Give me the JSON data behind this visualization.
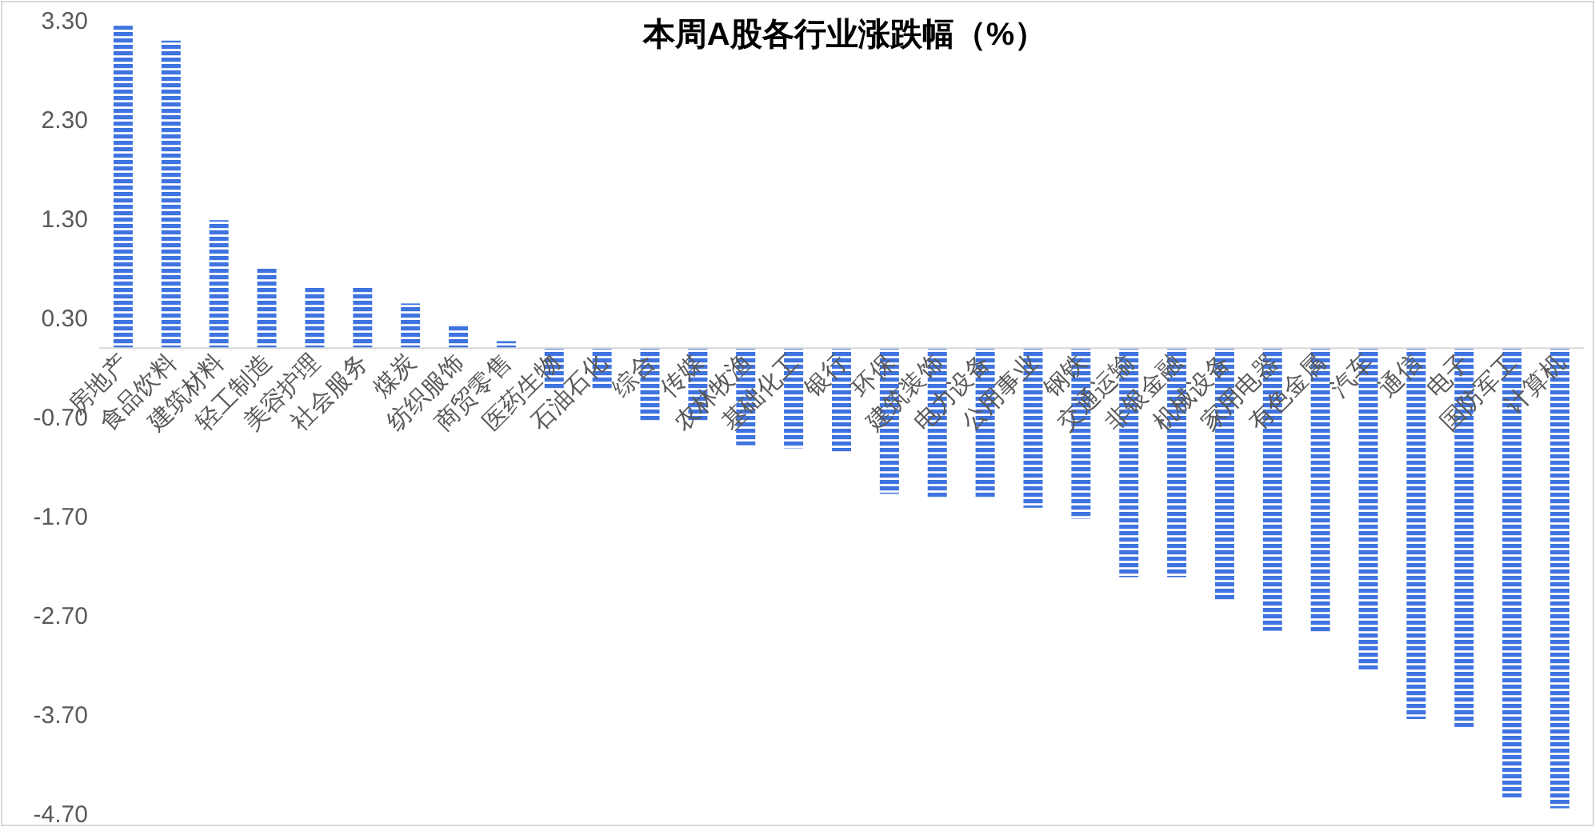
{
  "chart_data": {
    "type": "bar",
    "title": "本周A股各行业涨跌幅（%）",
    "categories": [
      "房地产",
      "食品饮料",
      "建筑材料",
      "轻工制造",
      "美容护理",
      "社会服务",
      "煤炭",
      "纺织服饰",
      "商贸零售",
      "医药生物",
      "石油石化",
      "综合",
      "传媒",
      "农林牧渔",
      "基础化工",
      "银行",
      "环保",
      "建筑装饰",
      "电力设备",
      "公用事业",
      "钢铁",
      "交通运输",
      "非银金融",
      "机械设备",
      "家用电器",
      "有色金属",
      "汽车",
      "通信",
      "电子",
      "国防军工",
      "计算机"
    ],
    "values": [
      3.25,
      3.1,
      1.29,
      0.8,
      0.61,
      0.61,
      0.45,
      0.24,
      0.07,
      -0.41,
      -0.41,
      -0.74,
      -0.74,
      -0.98,
      -1.01,
      -1.04,
      -1.47,
      -1.52,
      -1.52,
      -1.61,
      -1.72,
      -2.31,
      -2.31,
      -2.55,
      -2.85,
      -2.87,
      -3.24,
      -3.74,
      -3.82,
      -4.53,
      -4.64
    ],
    "color": "#3f74e0",
    "ylim": [
      -4.7,
      3.3
    ],
    "yticks": [
      {
        "value": 3.3,
        "label": "3.30"
      },
      {
        "value": 2.3,
        "label": "2.30"
      },
      {
        "value": 1.3,
        "label": "1.30"
      },
      {
        "value": 0.3,
        "label": "0.30"
      },
      {
        "value": -0.7,
        "label": "-0.70"
      },
      {
        "value": -1.7,
        "label": "-1.70"
      },
      {
        "value": -2.7,
        "label": "-2.70"
      },
      {
        "value": -3.7,
        "label": "-3.70"
      },
      {
        "value": -4.7,
        "label": "-4.70"
      }
    ],
    "grid": false
  }
}
